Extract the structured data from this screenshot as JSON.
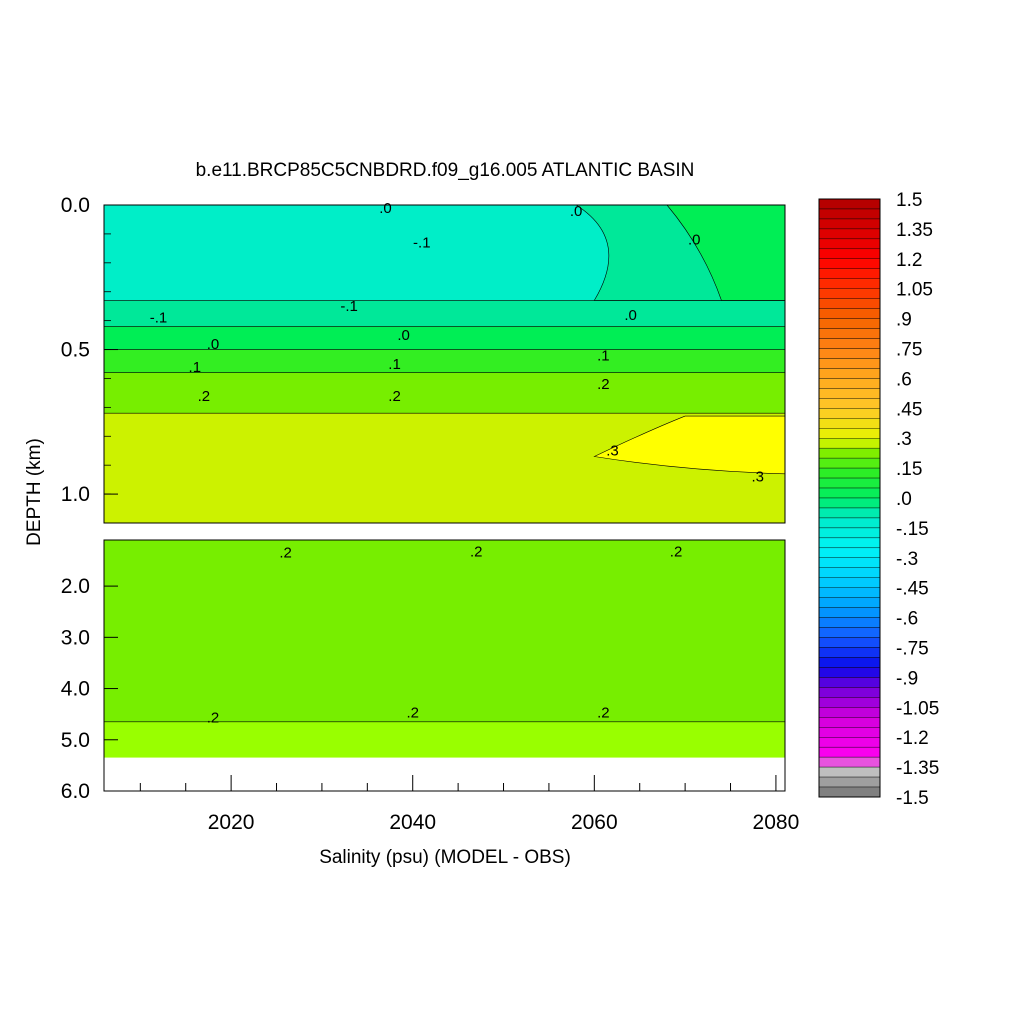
{
  "chart_data": {
    "type": "heatmap",
    "title": "b.e11.BRCP85C5CNBDRD.f09_g16.005 ATLANTIC BASIN",
    "xlabel": "Salinity (psu) (MODEL - OBS)",
    "ylabel": "DEPTH (km)",
    "xlim": [
      2006,
      2081
    ],
    "x_ticks": [
      "2020",
      "2040",
      "2060",
      "2080"
    ],
    "upper_panel": {
      "ylim": [
        0.0,
        1.1
      ],
      "y_ticks": [
        "0.0",
        "0.5",
        "1.0"
      ]
    },
    "lower_panel": {
      "ylim": [
        1.1,
        6.0
      ],
      "y_ticks": [
        "2.0",
        "3.0",
        "4.0",
        "5.0",
        "6.0"
      ],
      "data_bottom_km": 5.35
    },
    "colorbar": {
      "min": -1.5,
      "max": 1.5,
      "step": 0.05,
      "labels": [
        "1.5",
        "1.35",
        "1.2",
        "1.05",
        ".9",
        ".75",
        ".6",
        ".45",
        ".3",
        ".15",
        ".0",
        "-.15",
        "-.3",
        "-.45",
        "-.6",
        "-.75",
        "-.9",
        "-1.05",
        "-1.2",
        "-1.35",
        "-1.5"
      ]
    },
    "bands": [
      {
        "panel": "upper",
        "depth": [
          0.0,
          0.33
        ],
        "value": -0.1,
        "color": "#00eec8"
      },
      {
        "panel": "upper",
        "depth": [
          0.33,
          0.42
        ],
        "value": -0.05,
        "color": "#00e899"
      },
      {
        "panel": "upper",
        "depth": [
          0.42,
          0.5
        ],
        "value": 0.0,
        "color": "#00ee55"
      },
      {
        "panel": "upper",
        "depth": [
          0.5,
          0.58
        ],
        "value": 0.1,
        "color": "#33ee22"
      },
      {
        "panel": "upper",
        "depth": [
          0.58,
          0.72
        ],
        "value": 0.2,
        "color": "#77ee00"
      },
      {
        "panel": "upper",
        "depth": [
          0.72,
          1.1
        ],
        "value": 0.25,
        "color": "#ccf200"
      },
      {
        "panel": "lower",
        "depth": [
          1.1,
          4.65
        ],
        "value": 0.2,
        "color": "#77ee00"
      },
      {
        "panel": "lower",
        "depth": [
          4.65,
          5.35
        ],
        "value": 0.25,
        "color": "#99ff00"
      }
    ],
    "contour_labels": [
      {
        "text": ".0",
        "x": 2037,
        "y": 0.01
      },
      {
        "text": ".0",
        "x": 2058,
        "y": 0.02
      },
      {
        "text": "-.1",
        "x": 2041,
        "y": 0.13
      },
      {
        "text": ".0",
        "x": 2071,
        "y": 0.12
      },
      {
        "text": "-.1",
        "x": 2012,
        "y": 0.39
      },
      {
        "text": "-.1",
        "x": 2033,
        "y": 0.35
      },
      {
        "text": ".0",
        "x": 2064,
        "y": 0.38
      },
      {
        "text": ".0",
        "x": 2018,
        "y": 0.48
      },
      {
        "text": ".0",
        "x": 2039,
        "y": 0.45
      },
      {
        "text": ".1",
        "x": 2061,
        "y": 0.52
      },
      {
        "text": ".1",
        "x": 2016,
        "y": 0.56
      },
      {
        "text": ".1",
        "x": 2038,
        "y": 0.55
      },
      {
        "text": ".2",
        "x": 2061,
        "y": 0.62
      },
      {
        "text": ".2",
        "x": 2017,
        "y": 0.66
      },
      {
        "text": ".2",
        "x": 2038,
        "y": 0.66
      },
      {
        "text": ".3",
        "x": 2062,
        "y": 0.85
      },
      {
        "text": ".3",
        "x": 2078,
        "y": 0.94
      },
      {
        "text": ".2",
        "x": 2026,
        "y": 1.34
      },
      {
        "text": ".2",
        "x": 2047,
        "y": 1.32
      },
      {
        "text": ".2",
        "x": 2069,
        "y": 1.32
      },
      {
        "text": ".2",
        "x": 2018,
        "y": 4.57
      },
      {
        "text": ".2",
        "x": 2040,
        "y": 4.47
      },
      {
        "text": ".2",
        "x": 2061,
        "y": 4.47
      }
    ]
  }
}
